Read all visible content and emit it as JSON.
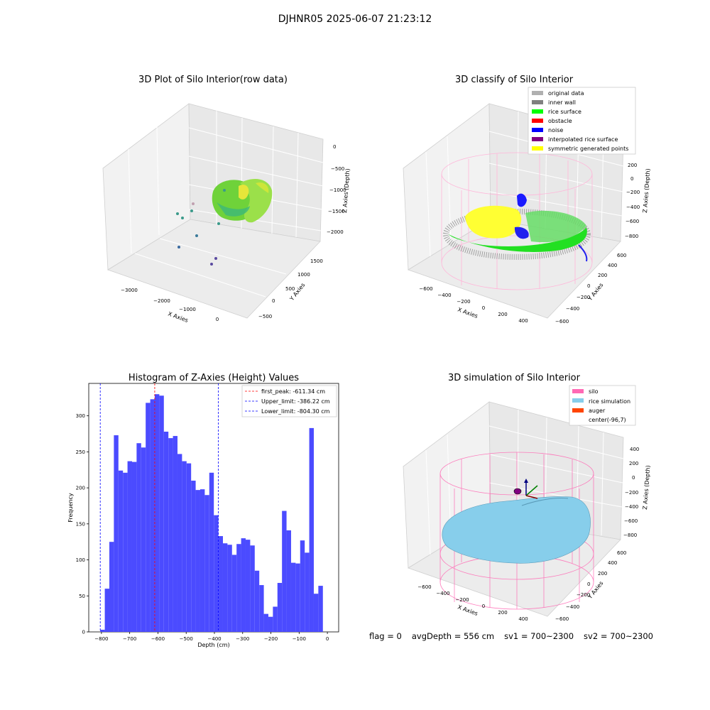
{
  "figure": {
    "suptitle": "DJHNR05 2025-06-07 21:23:12"
  },
  "colors": {
    "hist_bar": "#4b4bff",
    "peak_line": "#ff0000",
    "limit_line": "#0000ff",
    "pane": "#f2f2f2",
    "silo": "#ff69b4",
    "rice_sim": "#87ceeb",
    "auger": "#ff4500",
    "rice_surface": "#00ff00",
    "noise": "#0000ff",
    "obstacle": "#ff0000",
    "inner_wall": "#808080",
    "original_data": "#b0b0b0",
    "interpolated": "#800080",
    "symmetric": "#ffff00"
  },
  "chart_data": [
    {
      "type": "scatter",
      "subtype": "3d",
      "title": "3D Plot of Silo Interior(row data)",
      "xlabel": "X Axies",
      "ylabel": "Y Axies",
      "zlabel": "Z Axies (Depth)",
      "x_ticks": [
        "−3000",
        "−2000",
        "−1000",
        "0"
      ],
      "y_ticks": [
        "−500",
        "0",
        "500",
        "1000",
        "1500"
      ],
      "z_ticks": [
        "0",
        "−500",
        "−1000",
        "−1500",
        "−2000"
      ],
      "outliers": [
        {
          "x": -2300,
          "y": 200,
          "z": -1300
        },
        {
          "x": -2200,
          "y": 100,
          "z": -1400
        },
        {
          "x": -1800,
          "y": 300,
          "z": -1600
        },
        {
          "x": -2100,
          "y": -100,
          "z": -1800
        },
        {
          "x": -800,
          "y": -200,
          "z": -1900
        },
        {
          "x": -700,
          "y": -300,
          "z": -1950
        },
        {
          "x": -1200,
          "y": 400,
          "z": -1350
        }
      ]
    },
    {
      "type": "scatter",
      "subtype": "3d",
      "title": "3D classify of Silo Interior",
      "x_ticks": [
        "−600",
        "−400",
        "−200",
        "0",
        "200",
        "400"
      ],
      "y_ticks": [
        "−600",
        "−400",
        "−200",
        "0",
        "200",
        "400",
        "600"
      ],
      "z_ticks": [
        "0",
        "−200",
        "−400",
        "−600",
        "−800"
      ],
      "z_ticks_partial": [
        "200"
      ],
      "xlabel": "X Axies",
      "ylabel": "Y Axies",
      "zlabel": "Z Axies (Depth)",
      "legend": {
        "placement": "top-right",
        "entries": [
          {
            "label": "original data",
            "color": "#b0b0b0"
          },
          {
            "label": "inner wall",
            "color": "#808080"
          },
          {
            "label": "rice surface",
            "color": "#00ff00"
          },
          {
            "label": "obstacle",
            "color": "#ff0000"
          },
          {
            "label": "noise",
            "color": "#0000ff"
          },
          {
            "label": "interpolated rice surface",
            "color": "#800080"
          },
          {
            "label": "symmetric generated points",
            "color": "#ffff00"
          }
        ]
      }
    },
    {
      "type": "bar",
      "subtype": "histogram",
      "title": "Histogram of Z-Axies (Height) Values",
      "xlabel": "Depth (cm)",
      "ylabel": "Frequency",
      "xlim": [
        -845,
        40
      ],
      "ylim": [
        0,
        345
      ],
      "x_ticks": [
        -800,
        -700,
        -600,
        -500,
        -400,
        -300,
        -200,
        -100,
        0
      ],
      "y_ticks": [
        0,
        50,
        100,
        150,
        200,
        250,
        300
      ],
      "bin_start": -804.3,
      "bin_width": 16.09,
      "values": [
        3,
        60,
        125,
        273,
        224,
        221,
        237,
        236,
        262,
        256,
        318,
        323,
        330,
        328,
        278,
        269,
        272,
        247,
        237,
        234,
        210,
        197,
        198,
        190,
        221,
        162,
        133,
        123,
        121,
        107,
        122,
        130,
        128,
        120,
        85,
        65,
        25,
        21,
        35,
        68,
        168,
        141,
        96,
        95,
        127,
        110,
        283,
        53,
        64
      ],
      "vlines": [
        {
          "label": "first_peak: -611.34 cm",
          "x": -611.34,
          "color": "#ff0000"
        },
        {
          "label": "Upper_limit: -386.22 cm",
          "x": -386.22,
          "color": "#0000ff"
        },
        {
          "label": "Lower_limit: -804.30 cm",
          "x": -804.3,
          "color": "#0000ff"
        }
      ],
      "legend": {
        "placement": "top-right"
      }
    },
    {
      "type": "area",
      "subtype": "3d-surface",
      "title": "3D simulation of Silo Interior",
      "xlabel": "X Axies",
      "ylabel": "Y Axies",
      "zlabel": "Z Axies (Depth)",
      "x_ticks": [
        "−600",
        "−400",
        "−200",
        "0",
        "200",
        "400"
      ],
      "y_ticks": [
        "−600",
        "−400",
        "−200",
        "0",
        "200",
        "400",
        "600"
      ],
      "z_ticks": [
        "400",
        "200",
        "0",
        "−200",
        "−400",
        "−600",
        "−800"
      ],
      "legend": {
        "placement": "top-right",
        "entries": [
          {
            "label": "silo",
            "color": "#ff69b4"
          },
          {
            "label": "rice simulation",
            "color": "#87ceeb"
          },
          {
            "label": "auger",
            "color": "#ff4500"
          },
          {
            "label": "center(-96,7)",
            "color": ""
          }
        ]
      }
    }
  ],
  "footer": {
    "flag": "flag = 0",
    "avg": "avgDepth = 556 cm",
    "sv1": "sv1 = 700~2300",
    "sv2": "sv2 = 700~2300"
  }
}
